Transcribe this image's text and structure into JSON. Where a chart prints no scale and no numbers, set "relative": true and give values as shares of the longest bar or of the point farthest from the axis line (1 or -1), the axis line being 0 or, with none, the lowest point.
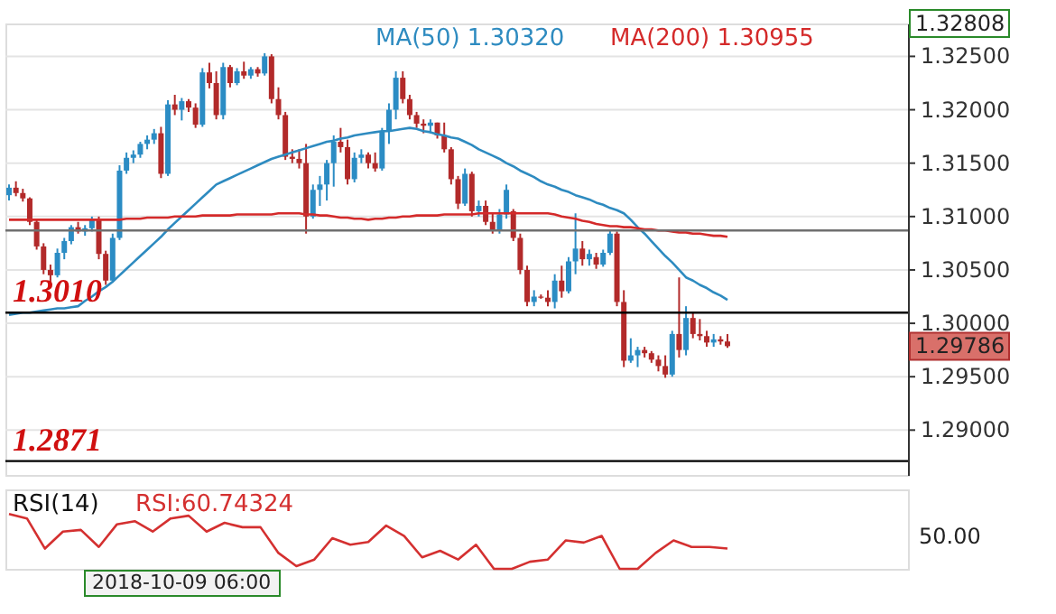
{
  "chart_data": [
    {
      "type": "candlestick",
      "grid": "y",
      "tick_labels": "y",
      "categories": [
        null,
        null,
        null,
        null,
        null,
        null,
        null,
        null,
        null,
        null,
        null,
        null,
        null,
        null,
        null,
        null,
        null,
        null,
        null,
        null,
        null,
        null,
        null,
        null,
        null,
        null,
        null,
        null,
        null,
        null,
        null,
        null,
        null,
        null,
        null,
        null,
        null,
        null,
        null,
        null,
        null,
        null,
        null,
        null,
        null,
        null,
        null,
        null,
        null,
        null,
        null,
        null,
        null,
        null,
        null,
        null,
        null,
        null,
        null,
        null,
        null,
        null,
        null,
        null,
        null,
        null,
        null,
        null,
        null,
        null,
        null,
        null,
        null,
        null,
        null,
        null,
        null,
        null,
        null,
        null,
        null,
        null,
        null,
        null,
        null,
        null,
        null,
        null,
        null,
        null,
        null,
        null,
        null,
        null,
        null,
        null,
        null,
        null,
        null,
        null,
        null,
        null,
        null,
        null,
        null
      ],
      "ohlc": [
        [
          1.312,
          1.313,
          1.3115,
          1.3127
        ],
        [
          1.3127,
          1.3133,
          1.3119,
          1.3122
        ],
        [
          1.3122,
          1.3126,
          1.3114,
          1.3117
        ],
        [
          1.3117,
          1.3118,
          1.3092,
          1.3095
        ],
        [
          1.3095,
          1.3097,
          1.3069,
          1.3072
        ],
        [
          1.3072,
          1.3075,
          1.3046,
          1.305
        ],
        [
          1.305,
          1.3055,
          1.3035,
          1.3045
        ],
        [
          1.3045,
          1.307,
          1.3043,
          1.3066
        ],
        [
          1.3066,
          1.308,
          1.306,
          1.3077
        ],
        [
          1.3077,
          1.3092,
          1.3074,
          1.309
        ],
        [
          1.309,
          1.3095,
          1.3084,
          1.3086
        ],
        [
          1.3086,
          1.3092,
          1.3082,
          1.3089
        ],
        [
          1.3089,
          1.31,
          1.3086,
          1.3098
        ],
        [
          1.3098,
          1.31,
          1.306,
          1.3065
        ],
        [
          1.3065,
          1.3068,
          1.3036,
          1.304
        ],
        [
          1.304,
          1.3084,
          1.3038,
          1.308
        ],
        [
          1.308,
          1.3148,
          1.3078,
          1.3143
        ],
        [
          1.3143,
          1.316,
          1.314,
          1.3155
        ],
        [
          1.3155,
          1.3162,
          1.315,
          1.3158
        ],
        [
          1.3158,
          1.317,
          1.3155,
          1.3168
        ],
        [
          1.3168,
          1.3176,
          1.3163,
          1.3172
        ],
        [
          1.3172,
          1.3182,
          1.3168,
          1.3178
        ],
        [
          1.3178,
          1.3184,
          1.3136,
          1.314
        ],
        [
          1.314,
          1.3209,
          1.3138,
          1.3205
        ],
        [
          1.3205,
          1.3214,
          1.3195,
          1.32
        ],
        [
          1.32,
          1.3211,
          1.319,
          1.3208
        ],
        [
          1.3208,
          1.321,
          1.3198,
          1.3202
        ],
        [
          1.3202,
          1.3206,
          1.3183,
          1.3186
        ],
        [
          1.3186,
          1.3239,
          1.3184,
          1.3235
        ],
        [
          1.3235,
          1.3244,
          1.322,
          1.3225
        ],
        [
          1.3225,
          1.3236,
          1.3191,
          1.3195
        ],
        [
          1.3195,
          1.3244,
          1.3191,
          1.324
        ],
        [
          1.324,
          1.3242,
          1.3221,
          1.3225
        ],
        [
          1.3225,
          1.3239,
          1.3223,
          1.3236
        ],
        [
          1.3236,
          1.3245,
          1.3229,
          1.3232
        ],
        [
          1.3232,
          1.324,
          1.3229,
          1.3238
        ],
        [
          1.3238,
          1.324,
          1.3231,
          1.3234
        ],
        [
          1.3234,
          1.3253,
          1.3232,
          1.325
        ],
        [
          1.325,
          1.3252,
          1.3206,
          1.321
        ],
        [
          1.321,
          1.3221,
          1.3191,
          1.3195
        ],
        [
          1.3195,
          1.3198,
          1.3153,
          1.3156
        ],
        [
          1.3156,
          1.3163,
          1.315,
          1.3154
        ],
        [
          1.3154,
          1.3163,
          1.3145,
          1.315
        ],
        [
          1.315,
          1.3168,
          1.3084,
          1.31
        ],
        [
          1.31,
          1.313,
          1.3098,
          1.3125
        ],
        [
          1.3125,
          1.3138,
          1.311,
          1.313
        ],
        [
          1.313,
          1.3153,
          1.3115,
          1.315
        ],
        [
          1.315,
          1.3176,
          1.3128,
          1.317
        ],
        [
          1.317,
          1.3183,
          1.316,
          1.3165
        ],
        [
          1.3165,
          1.3172,
          1.313,
          1.3135
        ],
        [
          1.3135,
          1.316,
          1.3132,
          1.3155
        ],
        [
          1.3155,
          1.3163,
          1.315,
          1.3158
        ],
        [
          1.3158,
          1.316,
          1.3145,
          1.315
        ],
        [
          1.315,
          1.316,
          1.3142,
          1.3145
        ],
        [
          1.3145,
          1.3183,
          1.3143,
          1.318
        ],
        [
          1.318,
          1.3206,
          1.3168,
          1.32
        ],
        [
          1.32,
          1.3236,
          1.3191,
          1.323
        ],
        [
          1.323,
          1.3236,
          1.3206,
          1.321
        ],
        [
          1.321,
          1.3214,
          1.3191,
          1.3195
        ],
        [
          1.3195,
          1.3198,
          1.3183,
          1.3187
        ],
        [
          1.3187,
          1.3191,
          1.3178,
          1.3185
        ],
        [
          1.3185,
          1.3191,
          1.3178,
          1.3188
        ],
        [
          1.3188,
          1.3188,
          1.3173,
          1.3176
        ],
        [
          1.3176,
          1.3188,
          1.316,
          1.3163
        ],
        [
          1.3163,
          1.3165,
          1.313,
          1.3135
        ],
        [
          1.3135,
          1.3138,
          1.3107,
          1.3112
        ],
        [
          1.3112,
          1.3145,
          1.311,
          1.314
        ],
        [
          1.314,
          1.3142,
          1.31,
          1.3105
        ],
        [
          1.3105,
          1.3115,
          1.31,
          1.311
        ],
        [
          1.311,
          1.3115,
          1.3092,
          1.3095
        ],
        [
          1.3095,
          1.3103,
          1.3084,
          1.3088
        ],
        [
          1.3088,
          1.3107,
          1.3084,
          1.3102
        ],
        [
          1.3102,
          1.313,
          1.3098,
          1.3125
        ],
        [
          1.3105,
          1.3107,
          1.3077,
          1.308
        ],
        [
          1.308,
          1.3084,
          1.3046,
          1.305
        ],
        [
          1.305,
          1.3054,
          1.3016,
          1.302
        ],
        [
          1.302,
          1.3031,
          1.3016,
          1.3025
        ],
        [
          1.3025,
          1.3027,
          1.3023,
          1.3024
        ],
        [
          1.3024,
          1.3031,
          1.3016,
          1.302
        ],
        [
          1.302,
          1.3046,
          1.3014,
          1.304
        ],
        [
          1.304,
          1.3054,
          1.3024,
          1.303
        ],
        [
          1.303,
          1.3062,
          1.3028,
          1.3058
        ],
        [
          1.3058,
          1.3103,
          1.3046,
          1.307
        ],
        [
          1.307,
          1.3077,
          1.3054,
          1.306
        ],
        [
          1.306,
          1.3069,
          1.3054,
          1.3065
        ],
        [
          1.3062,
          1.3066,
          1.3051,
          1.3055
        ],
        [
          1.3055,
          1.3069,
          1.3053,
          1.3066
        ],
        [
          1.3066,
          1.3087,
          1.3064,
          1.3084
        ],
        [
          1.3084,
          1.3086,
          1.3016,
          1.302
        ],
        [
          1.302,
          1.3031,
          1.2959,
          1.2965
        ],
        [
          1.2965,
          1.2986,
          1.2963,
          1.297
        ],
        [
          1.297,
          1.2978,
          1.2959,
          1.2975
        ],
        [
          1.2975,
          1.2978,
          1.2968,
          1.2972
        ],
        [
          1.2972,
          1.2974,
          1.2963,
          1.2966
        ],
        [
          1.2966,
          1.297,
          1.2955,
          1.296
        ],
        [
          1.296,
          1.297,
          1.2949,
          1.2952
        ],
        [
          1.2952,
          1.2993,
          1.295,
          1.299
        ],
        [
          1.299,
          1.3043,
          1.2968,
          1.2975
        ],
        [
          1.2975,
          1.3016,
          1.297,
          1.3005
        ],
        [
          1.3005,
          1.301,
          1.2986,
          1.299
        ],
        [
          1.299,
          1.3004,
          1.2984,
          1.2988
        ],
        [
          1.2988,
          1.2993,
          1.2978,
          1.2982
        ],
        [
          1.2982,
          1.299,
          1.2978,
          1.2985
        ],
        [
          1.2985,
          1.2988,
          1.298,
          1.2983
        ],
        [
          1.2983,
          1.299,
          1.2977,
          1.29786
        ]
      ],
      "series": [
        {
          "type": "line",
          "name": "MA(50) 1.30320",
          "color": "#2e8bc0",
          "values": [
            1.3008,
            1.3009,
            1.301,
            1.301,
            1.3011,
            1.3012,
            1.3013,
            1.3014,
            1.3014,
            1.3015,
            1.3016,
            1.3021,
            1.3025,
            1.303,
            1.3034,
            1.3039,
            1.3045,
            1.3051,
            1.3057,
            1.3063,
            1.3069,
            1.3075,
            1.3081,
            1.3088,
            1.3094,
            1.31,
            1.3106,
            1.3112,
            1.3118,
            1.3124,
            1.313,
            1.3133,
            1.3136,
            1.3139,
            1.3142,
            1.3145,
            1.3148,
            1.3151,
            1.3154,
            1.3156,
            1.3158,
            1.316,
            1.3162,
            1.3164,
            1.3166,
            1.3168,
            1.317,
            1.3171,
            1.3173,
            1.3174,
            1.3176,
            1.3177,
            1.3178,
            1.3179,
            1.318,
            1.318,
            1.3181,
            1.3182,
            1.3183,
            1.3182,
            1.318,
            1.3179,
            1.3177,
            1.3176,
            1.3174,
            1.3173,
            1.317,
            1.3167,
            1.3163,
            1.316,
            1.3157,
            1.3154,
            1.315,
            1.3147,
            1.3143,
            1.314,
            1.3137,
            1.3133,
            1.313,
            1.3128,
            1.3125,
            1.3123,
            1.312,
            1.3118,
            1.3116,
            1.3113,
            1.3111,
            1.3108,
            1.3106,
            1.3103,
            1.3097,
            1.309,
            1.3084,
            1.3077,
            1.307,
            1.3063,
            1.3057,
            1.305,
            1.3043,
            1.304,
            1.3036,
            1.3033,
            1.3029,
            1.3026,
            1.3022
          ]
        },
        {
          "type": "line",
          "name": "MA(200) 1.30955",
          "color": "#d42a2a",
          "values": [
            1.3097,
            1.3097,
            1.3097,
            1.3097,
            1.3097,
            1.3097,
            1.3097,
            1.3097,
            1.3097,
            1.3097,
            1.3097,
            1.3097,
            1.3097,
            1.3097,
            1.3097,
            1.3097,
            1.3097,
            1.3098,
            1.3098,
            1.3098,
            1.3099,
            1.3099,
            1.3099,
            1.3099,
            1.31,
            1.31,
            1.31,
            1.31,
            1.3101,
            1.3101,
            1.3101,
            1.3101,
            1.3101,
            1.3102,
            1.3102,
            1.3102,
            1.3102,
            1.3102,
            1.3102,
            1.3103,
            1.3103,
            1.3103,
            1.3103,
            1.3102,
            1.3102,
            1.3101,
            1.3101,
            1.31,
            1.3099,
            1.3099,
            1.3098,
            1.3098,
            1.3097,
            1.3098,
            1.3098,
            1.3099,
            1.3099,
            1.31,
            1.31,
            1.3101,
            1.3101,
            1.3101,
            1.3101,
            1.3102,
            1.3102,
            1.3102,
            1.3102,
            1.3102,
            1.3103,
            1.3103,
            1.3103,
            1.3103,
            1.3103,
            1.3103,
            1.3103,
            1.3103,
            1.3103,
            1.3103,
            1.3103,
            1.3102,
            1.31,
            1.3099,
            1.3098,
            1.3096,
            1.3095,
            1.3093,
            1.3092,
            1.3091,
            1.3091,
            1.309,
            1.309,
            1.3089,
            1.3088,
            1.3088,
            1.3087,
            1.3087,
            1.3086,
            1.3085,
            1.3085,
            1.3084,
            1.3084,
            1.3083,
            1.3082,
            1.3082,
            1.3081
          ]
        }
      ],
      "ylim": [
        1.2858,
        1.32808
      ],
      "yticks": [
        {
          "value": 1.29,
          "label": "1.29000"
        },
        {
          "value": 1.295,
          "label": "1.29500"
        },
        {
          "value": 1.3,
          "label": "1.30000"
        },
        {
          "value": 1.305,
          "label": "1.30500"
        },
        {
          "value": 1.31,
          "label": "1.31000"
        },
        {
          "value": 1.315,
          "label": "1.31500"
        },
        {
          "value": 1.32,
          "label": "1.32000"
        },
        {
          "value": 1.325,
          "label": "1.32500"
        }
      ],
      "ref_lines": [
        {
          "axis": "y",
          "value": 1.301,
          "label": "1.3010",
          "color": "#000000"
        },
        {
          "axis": "y",
          "value": 1.2871,
          "label": "1.2871",
          "color": "#000000"
        },
        {
          "axis": "y",
          "value": 1.3087,
          "color": "#707070"
        }
      ],
      "annotations": [
        "1.29786",
        "1.32808"
      ]
    },
    {
      "type": "line",
      "relative": true,
      "tick_labels": false,
      "title": "RSI(14)",
      "categories": [
        null,
        null,
        null,
        null,
        null,
        null,
        null,
        null,
        null,
        null,
        null,
        null,
        null,
        null,
        null,
        null,
        null,
        null,
        null,
        null,
        null,
        null,
        null,
        null,
        null,
        null,
        null,
        null,
        null,
        null,
        null,
        null,
        null,
        null,
        null,
        null,
        null,
        null,
        null,
        null,
        null
      ],
      "series": [
        {
          "name": "RSI:60.74324",
          "color": "#d43030",
          "values": [
            1.0,
            0.92,
            0.37,
            0.68,
            0.71,
            0.4,
            0.81,
            0.87,
            0.68,
            0.92,
            0.97,
            0.68,
            0.84,
            0.76,
            0.76,
            0.29,
            0.05,
            0.17,
            0.56,
            0.44,
            0.49,
            0.79,
            0.6,
            0.21,
            0.33,
            0.17,
            0.44,
            0,
            0,
            0.13,
            0.17,
            0.52,
            0.48,
            0.6,
            0,
            0,
            0.29,
            0.52,
            0.4,
            0.4,
            0.37
          ]
        }
      ],
      "annotations": [
        "50.00",
        "2018-10-09 06:00"
      ]
    }
  ]
}
